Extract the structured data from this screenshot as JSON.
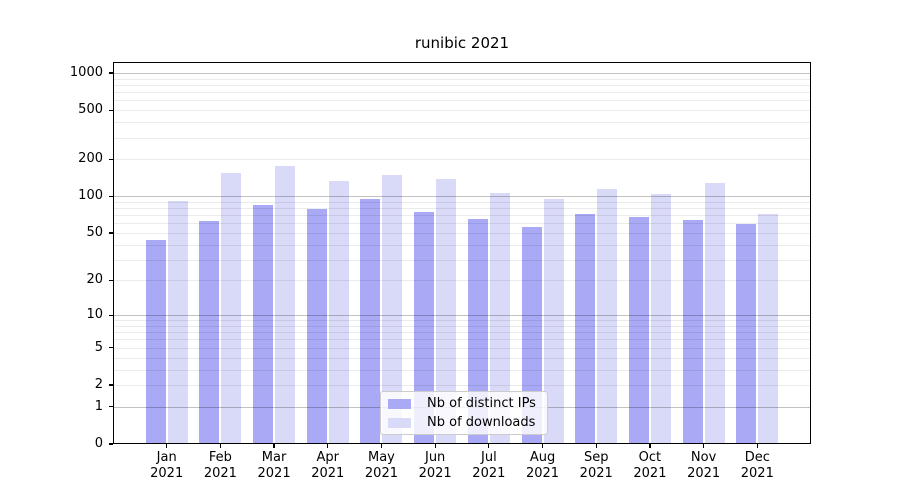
{
  "chart_data": {
    "type": "bar",
    "title": "runibic 2021",
    "x_tick_months": [
      "Jan",
      "Feb",
      "Mar",
      "Apr",
      "May",
      "Jun",
      "Jul",
      "Aug",
      "Sep",
      "Oct",
      "Nov",
      "Dec"
    ],
    "x_tick_year": "2021",
    "series": [
      {
        "name": "Nb of distinct IPs",
        "color": "#a9a9f6",
        "values": [
          44,
          63,
          84,
          78,
          95,
          74,
          65,
          56,
          72,
          67,
          64,
          59
        ]
      },
      {
        "name": "Nb of downloads",
        "color": "#d9d9f8",
        "values": [
          92,
          153,
          175,
          134,
          150,
          138,
          107,
          95,
          114,
          104,
          128,
          71
        ]
      }
    ],
    "y_scale": "log1p",
    "y_ticks": [
      0,
      1,
      2,
      5,
      10,
      20,
      50,
      100,
      200,
      500,
      1000
    ],
    "ylim": [
      0,
      1227
    ],
    "grid": "major and minor horizontal gridlines",
    "legend_position": "lower center inside plot"
  },
  "colors": {
    "background": "#ffffff",
    "bar_distinct_ips": "#a9a9f6",
    "bar_downloads": "#d9d9f8",
    "axis": "#000000",
    "text": "#000000",
    "legend_border": "#cccccc"
  }
}
